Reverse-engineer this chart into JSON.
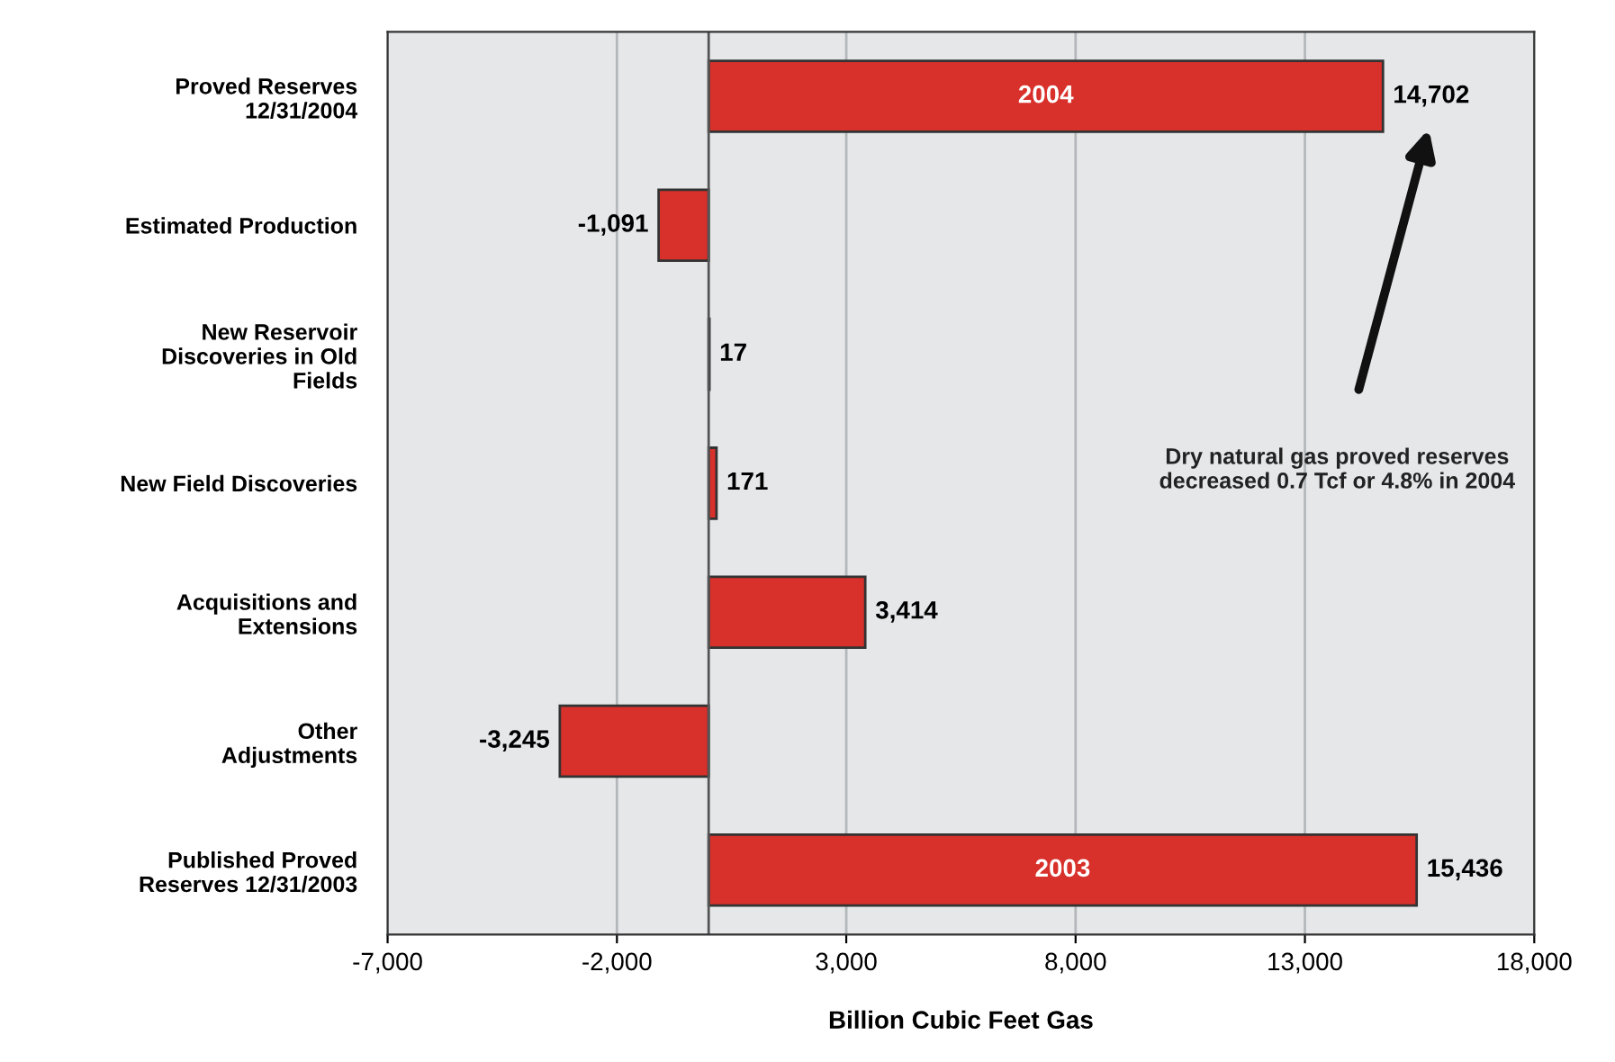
{
  "chart_data": {
    "type": "bar",
    "orientation": "horizontal",
    "xlabel": "Billion Cubic Feet Gas",
    "categories": [
      "Proved Reserves\n12/31/2004",
      "Estimated Production",
      "New Reservoir\nDiscoveries in Old\nFields",
      "New Field Discoveries",
      "Acquisitions and\nExtensions",
      "Other\nAdjustments",
      "Published Proved\nReserves 12/31/2003"
    ],
    "values": [
      14702,
      -1091,
      17,
      171,
      3414,
      -3245,
      15436
    ],
    "value_labels": [
      "14,702",
      "-1,091",
      "17",
      "171",
      "3,414",
      "-3,245",
      "15,436"
    ],
    "color": "#d8302a",
    "xlim": [
      -7000,
      18000
    ],
    "xticks": [
      {
        "value": -7000,
        "label": "-7,000"
      },
      {
        "value": -2000,
        "label": "-2,000"
      },
      {
        "value": 3000,
        "label": "3,000"
      },
      {
        "value": 8000,
        "label": "8,000"
      },
      {
        "value": 13000,
        "label": "13,000"
      },
      {
        "value": 18000,
        "label": "18,000"
      }
    ],
    "grid": "x",
    "ref_lines": [
      {
        "axis": "x",
        "value": 0,
        "color": "#555555"
      }
    ],
    "annotations": [
      "2004",
      "2003",
      "Dry natural gas proved reserves\ndecreased 0.7 Tcf or 4.8% in 2004"
    ]
  }
}
